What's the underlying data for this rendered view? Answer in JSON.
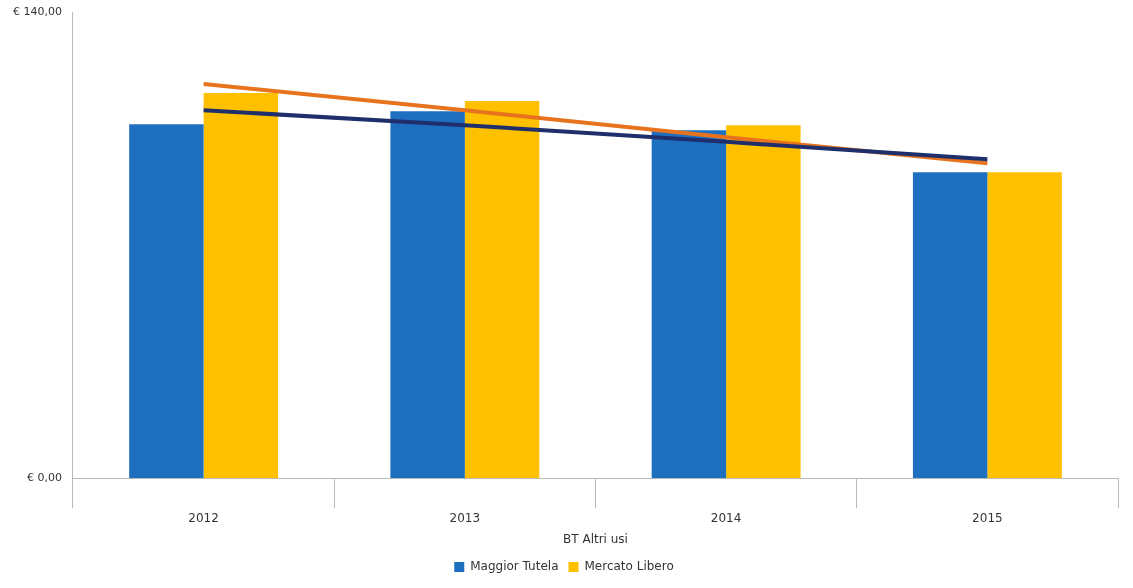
{
  "chart_data": {
    "type": "bar",
    "xlabel": "BT Altri usi",
    "categories": [
      "2012",
      "2013",
      "2014",
      "2015"
    ],
    "series": [
      {
        "name": "Maggior Tutela",
        "color": "#1f6fc0",
        "values": [
          106.3,
          110.2,
          104.5,
          91.9
        ]
      },
      {
        "name": "Mercato Libero",
        "color": "#ffc000",
        "values": [
          115.7,
          113.3,
          106,
          91.9
        ]
      },
      {
        "type": "line",
        "color": "#1f2f6b",
        "values": [
          110.5,
          106,
          101,
          95.8
        ]
      },
      {
        "type": "line",
        "color": "#e8731f",
        "values": [
          118.4,
          110.5,
          102.4,
          94.6
        ]
      }
    ],
    "ylim": [
      0,
      140
    ],
    "yticks": [
      {
        "value": 0,
        "label": "€ 0,00"
      },
      {
        "value": 140,
        "label": "€ 140,00"
      }
    ],
    "grid": false,
    "legend": "bottom"
  }
}
